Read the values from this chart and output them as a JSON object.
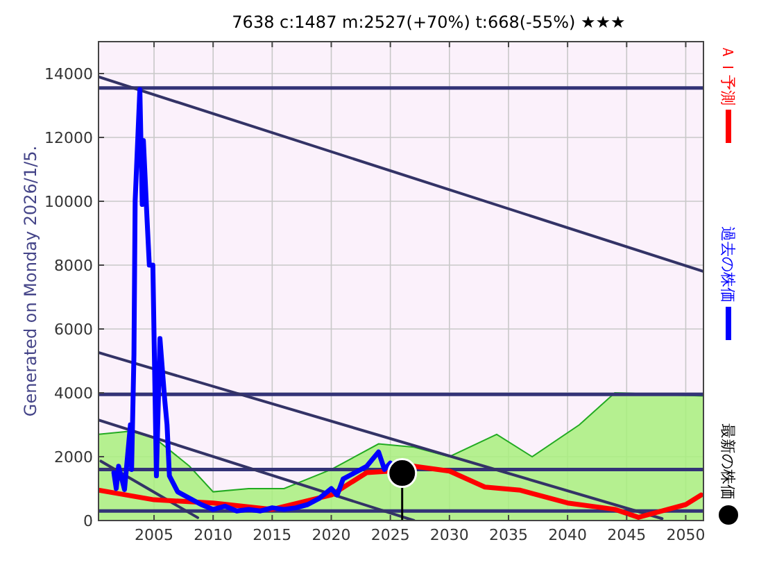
{
  "chart_data": {
    "type": "line",
    "title": "7638 c:1487 m:2527(+70%) t:668(-55%) ★★★",
    "xlim": [
      2000.3,
      2051.5
    ],
    "xticks": [
      2005,
      2010,
      2015,
      2020,
      2025,
      2030,
      2035,
      2040,
      2045,
      2050
    ],
    "ylim": [
      0,
      15000
    ],
    "yticks": [
      0,
      2000,
      4000,
      6000,
      8000,
      10000,
      12000,
      14000
    ],
    "grid": true,
    "legend": "right",
    "line_style": "solid",
    "annotations": [
      "Generated on Monday 2026/1/5."
    ],
    "ref_lines": [
      {
        "axis": "y",
        "value": 13550,
        "label": null,
        "color": "#333377"
      },
      {
        "axis": "y",
        "value": 3950,
        "label": null,
        "color": "#333377"
      },
      {
        "axis": "y",
        "value": 1600,
        "label": null,
        "color": "#333377"
      },
      {
        "axis": "y",
        "value": 300,
        "label": null,
        "color": "#333377"
      }
    ],
    "series": [
      {
        "type": "area",
        "color": "#a8f07c",
        "x": [
          2000.3,
          2003,
          2005,
          2008,
          2010,
          2013,
          2016,
          2020,
          2024,
          2027,
          2030,
          2034,
          2037,
          2041,
          2044,
          2048,
          2051.5
        ],
        "values": [
          2700,
          2800,
          2600,
          1700,
          900,
          1000,
          1000,
          1600,
          2400,
          2300,
          2000,
          2700,
          2000,
          3000,
          4000,
          3950,
          3900
        ]
      },
      {
        "color": "#333366",
        "x": [
          2000.3,
          2051.5
        ],
        "values": [
          13900,
          7800
        ]
      },
      {
        "color": "#333366",
        "x": [
          2000.3,
          2048
        ],
        "values": [
          5260,
          60
        ]
      },
      {
        "color": "#333366",
        "x": [
          2000.3,
          2027
        ],
        "values": [
          3150,
          0
        ]
      },
      {
        "color": "#333366",
        "x": [
          2000.5,
          2008.7
        ],
        "values": [
          1860,
          90
        ]
      },
      {
        "name": "ＡＩ予測",
        "color": "#ff0000",
        "x": [
          2000.3,
          2005,
          2010,
          2015,
          2020,
          2023,
          2025,
          2027,
          2030,
          2033,
          2036,
          2040,
          2044,
          2046,
          2048,
          2050,
          2051.3
        ],
        "values": [
          950,
          650,
          550,
          350,
          800,
          1500,
          1550,
          1700,
          1550,
          1050,
          950,
          550,
          350,
          100,
          300,
          500,
          800
        ]
      },
      {
        "name": "過去の株価",
        "color": "#0000ff",
        "x": [
          2001.6,
          2001.8,
          2002.0,
          2002.5,
          2003.0,
          2003.1,
          2003.3,
          2003.4,
          2003.8,
          2004.0,
          2004.1,
          2004.4,
          2004.6,
          2004.9,
          2005.2,
          2005.5,
          2005.9,
          2006.1,
          2006.3,
          2007,
          2008,
          2009,
          2010,
          2011,
          2012,
          2013,
          2014,
          2015,
          2016,
          2017,
          2018,
          2019,
          2020,
          2020.5,
          2021,
          2022,
          2023,
          2024,
          2024.5,
          2025
        ],
        "values": [
          1500,
          1000,
          1700,
          970,
          3000,
          1600,
          5200,
          10000,
          13500,
          9900,
          11900,
          9500,
          8000,
          8000,
          1400,
          5700,
          3800,
          3000,
          1400,
          900,
          700,
          500,
          350,
          450,
          300,
          350,
          300,
          400,
          350,
          400,
          500,
          700,
          1000,
          800,
          1300,
          1500,
          1700,
          2150,
          1600,
          1800
        ]
      },
      {
        "type": "lollipop",
        "name": "最新の株価",
        "color": "#000000",
        "x": [
          2026
        ],
        "values": [
          1487
        ]
      }
    ]
  }
}
